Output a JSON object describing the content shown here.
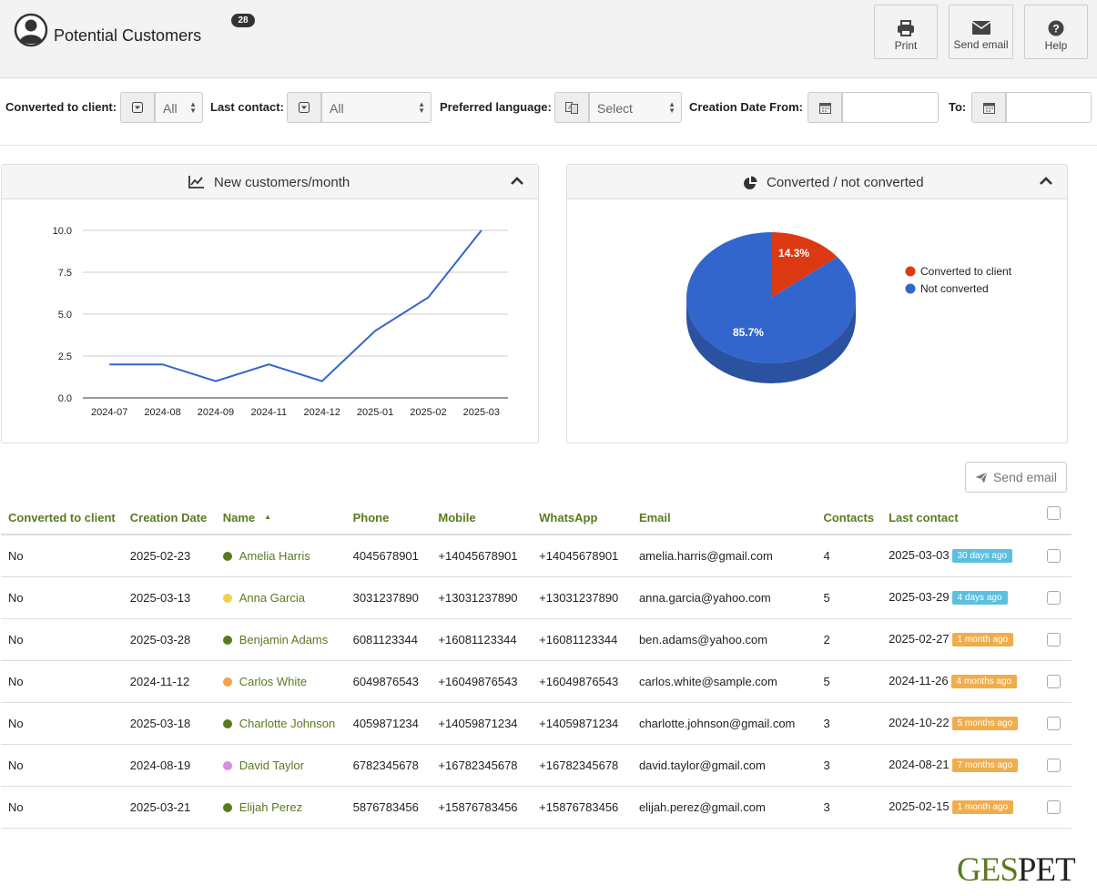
{
  "header": {
    "title": "Potential Customers",
    "count": "28",
    "buttons": {
      "print": "Print",
      "send_email": "Send email",
      "help": "Help"
    }
  },
  "filters": {
    "converted_label": "Converted to client:",
    "converted_value": "All",
    "last_contact_label": "Last contact:",
    "last_contact_value": "All",
    "language_label": "Preferred language:",
    "language_value": "Select",
    "date_from_label": "Creation Date From:",
    "date_to_label": "To:"
  },
  "charts": {
    "line_title": "New customers/month",
    "pie_title": "Converted / not converted"
  },
  "chart_data": [
    {
      "type": "line",
      "title": "New customers/month",
      "categories": [
        "2024-07",
        "2024-08",
        "2024-09",
        "2024-11",
        "2024-12",
        "2025-01",
        "2025-02",
        "2025-03"
      ],
      "values": [
        2,
        2,
        1,
        2,
        1,
        4,
        6,
        10
      ],
      "yticks": [
        "0.0",
        "2.5",
        "5.0",
        "7.5",
        "10.0"
      ],
      "ylim": [
        0,
        10
      ],
      "grid": true,
      "color": "#3366cc"
    },
    {
      "type": "pie",
      "title": "Converted / not converted",
      "labels": [
        "Converted to client",
        "Not converted"
      ],
      "values": [
        14.3,
        85.7
      ],
      "value_labels": [
        "14.3%",
        "85.7%"
      ],
      "colors": [
        "#dc3912",
        "#3366cc"
      ],
      "legend": "right"
    }
  ],
  "table": {
    "send_email_label": "Send email",
    "columns": [
      "Converted to client",
      "Creation Date",
      "Name",
      "Phone",
      "Mobile",
      "WhatsApp",
      "Email",
      "Contacts",
      "Last contact"
    ],
    "rows": [
      {
        "converted": "No",
        "created": "2025-02-23",
        "name": "Amelia Harris",
        "dot": "#5b7a1f",
        "phone": "4045678901",
        "mobile": "+14045678901",
        "whatsapp": "+14045678901",
        "email": "amelia.harris@gmail.com",
        "contacts": "4",
        "last": "2025-03-03",
        "ago": "30 days ago",
        "ago_color": "#5bc0de"
      },
      {
        "converted": "No",
        "created": "2025-03-13",
        "name": "Anna Garcia",
        "dot": "#f0d050",
        "phone": "3031237890",
        "mobile": "+13031237890",
        "whatsapp": "+13031237890",
        "email": "anna.garcia@yahoo.com",
        "contacts": "5",
        "last": "2025-03-29",
        "ago": "4 days ago",
        "ago_color": "#5bc0de"
      },
      {
        "converted": "No",
        "created": "2025-03-28",
        "name": "Benjamin Adams",
        "dot": "#5b7a1f",
        "phone": "6081123344",
        "mobile": "+16081123344",
        "whatsapp": "+16081123344",
        "email": "ben.adams@yahoo.com",
        "contacts": "2",
        "last": "2025-02-27",
        "ago": "1 month ago",
        "ago_color": "#f0ad4e"
      },
      {
        "converted": "No",
        "created": "2024-11-12",
        "name": "Carlos White",
        "dot": "#f5a050",
        "phone": "6049876543",
        "mobile": "+16049876543",
        "whatsapp": "+16049876543",
        "email": "carlos.white@sample.com",
        "contacts": "5",
        "last": "2024-11-26",
        "ago": "4 months ago",
        "ago_color": "#f0ad4e"
      },
      {
        "converted": "No",
        "created": "2025-03-18",
        "name": "Charlotte Johnson",
        "dot": "#5b7a1f",
        "phone": "4059871234",
        "mobile": "+14059871234",
        "whatsapp": "+14059871234",
        "email": "charlotte.johnson@gmail.com",
        "contacts": "3",
        "last": "2024-10-22",
        "ago": "5 months ago",
        "ago_color": "#f0ad4e"
      },
      {
        "converted": "No",
        "created": "2024-08-19",
        "name": "David Taylor",
        "dot": "#d98ce0",
        "phone": "6782345678",
        "mobile": "+16782345678",
        "whatsapp": "+16782345678",
        "email": "david.taylor@gmail.com",
        "contacts": "3",
        "last": "2024-08-21",
        "ago": "7 months ago",
        "ago_color": "#f0ad4e"
      },
      {
        "converted": "No",
        "created": "2025-03-21",
        "name": "Elijah Perez",
        "dot": "#5b7a1f",
        "phone": "5876783456",
        "mobile": "+15876783456",
        "whatsapp": "+15876783456",
        "email": "elijah.perez@gmail.com",
        "contacts": "3",
        "last": "2025-02-15",
        "ago": "1 month ago",
        "ago_color": "#f0ad4e"
      }
    ]
  },
  "logo": {
    "part1": "GES",
    "part2": "PET",
    "color1": "#5b7a1f",
    "color2": "#222222"
  }
}
